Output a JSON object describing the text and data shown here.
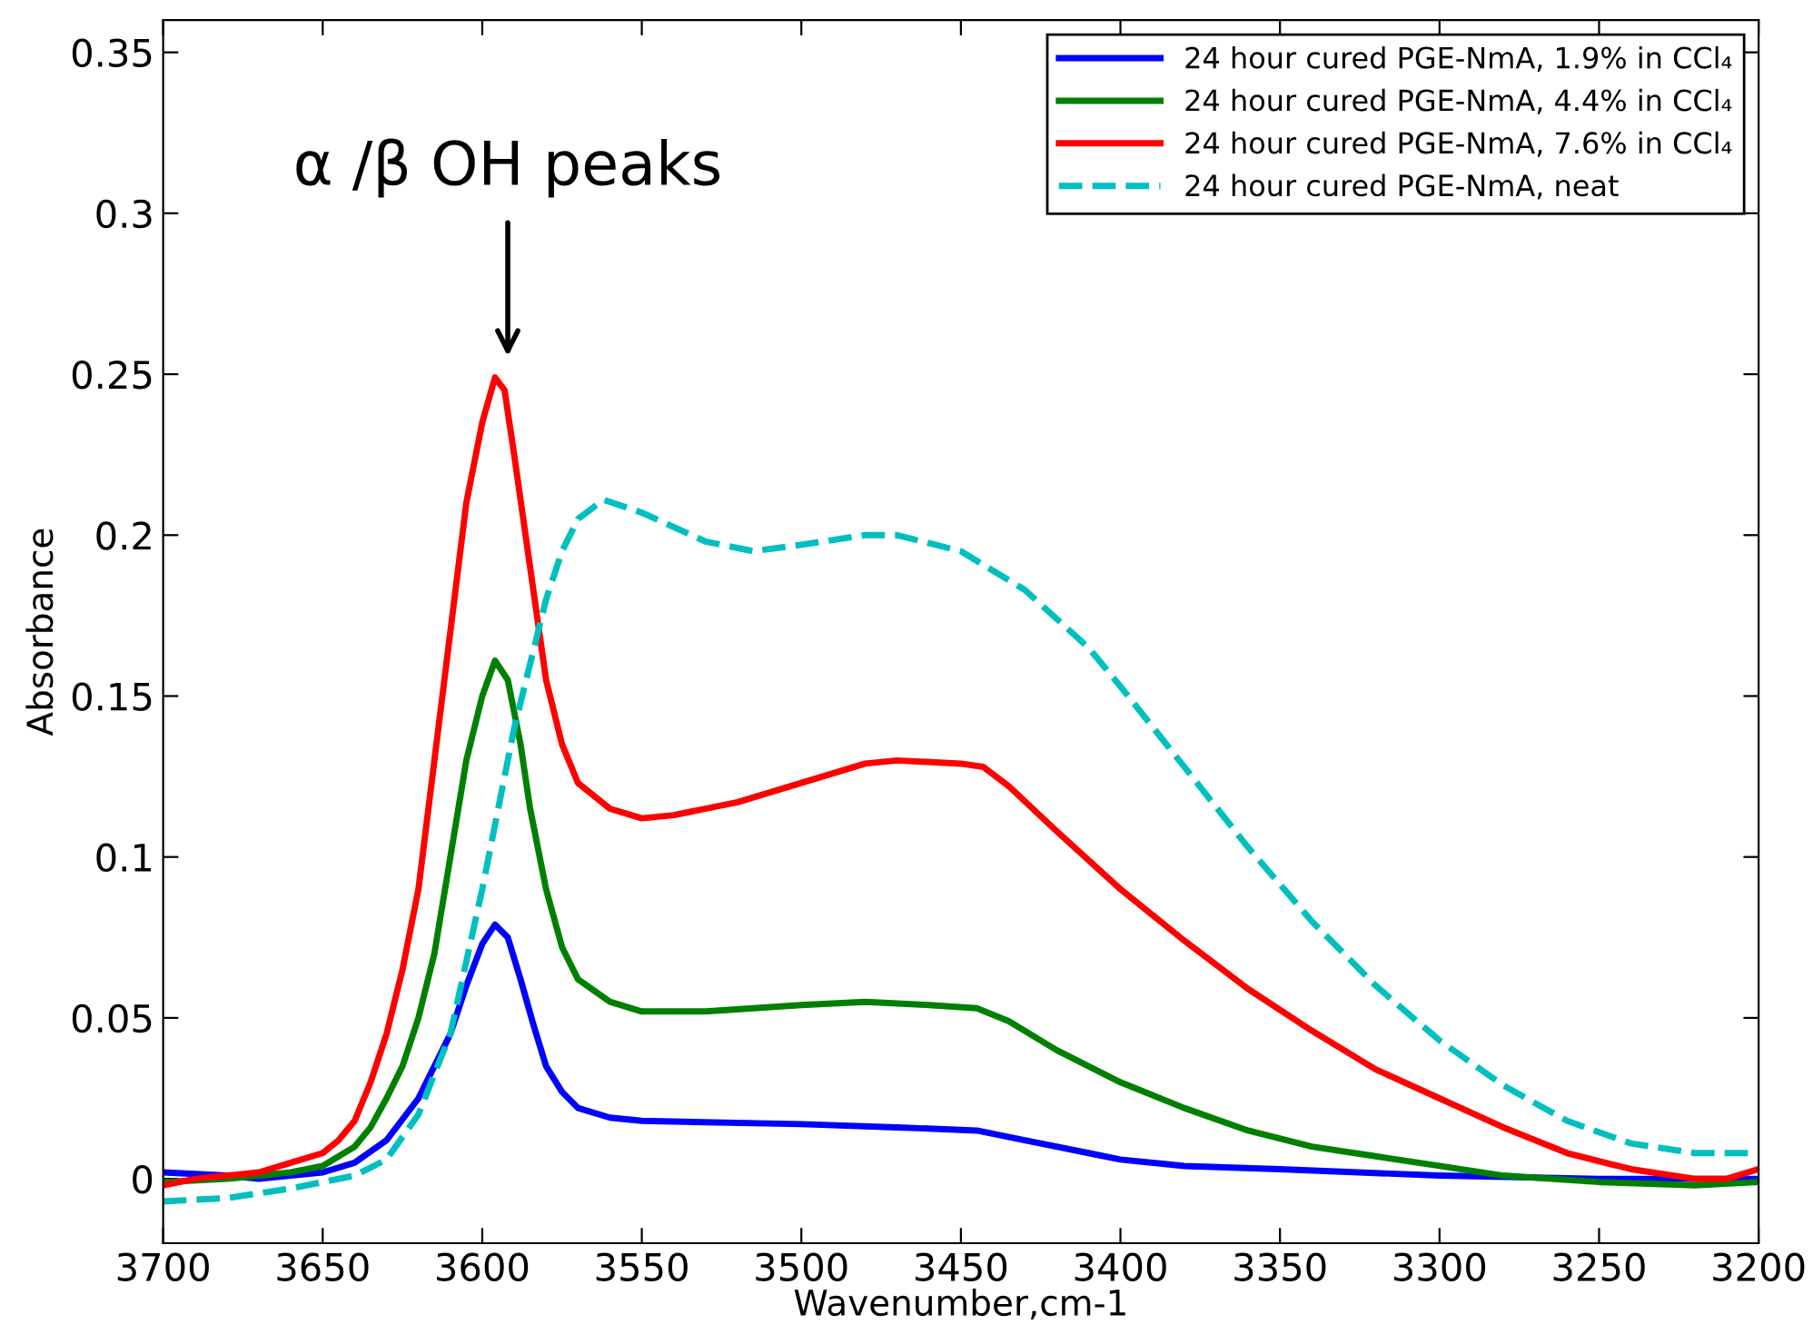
{
  "chart_data": {
    "type": "line",
    "xlabel": "Wavenumber,cm-1",
    "ylabel": "Absorbance",
    "xlim": [
      3700,
      3200
    ],
    "xticks": [
      3700,
      3650,
      3600,
      3550,
      3500,
      3450,
      3400,
      3350,
      3300,
      3250,
      3200
    ],
    "ylim": [
      -0.02,
      0.36
    ],
    "yticks": [
      0,
      0.05,
      0.1,
      0.15,
      0.2,
      0.25,
      0.3,
      0.35
    ],
    "grid": false,
    "legend": "top right",
    "marker": "none",
    "annotations": [
      "α /β OH peaks"
    ],
    "series": [
      {
        "name": "24 hour cured PGE-NmA, 1.9% in CCl₄",
        "color": "#0000ff",
        "line_style": "solid",
        "x": [
          3700,
          3680,
          3670,
          3660,
          3650,
          3640,
          3630,
          3620,
          3610,
          3605,
          3600,
          3596,
          3592,
          3588,
          3584,
          3580,
          3575,
          3570,
          3560,
          3550,
          3500,
          3470,
          3445,
          3430,
          3410,
          3400,
          3380,
          3350,
          3300,
          3250,
          3200
        ],
        "values": [
          0.002,
          0.001,
          0.0,
          0.001,
          0.002,
          0.005,
          0.012,
          0.025,
          0.045,
          0.06,
          0.073,
          0.079,
          0.075,
          0.062,
          0.048,
          0.035,
          0.027,
          0.022,
          0.019,
          0.018,
          0.017,
          0.016,
          0.015,
          0.012,
          0.008,
          0.006,
          0.004,
          0.003,
          0.001,
          0.0,
          0.0
        ]
      },
      {
        "name": "24 hour cured PGE-NmA, 4.4% in CCl₄",
        "color": "#008000",
        "line_style": "solid",
        "x": [
          3700,
          3680,
          3660,
          3650,
          3640,
          3635,
          3630,
          3625,
          3620,
          3615,
          3610,
          3605,
          3600,
          3596,
          3592,
          3588,
          3585,
          3580,
          3575,
          3570,
          3560,
          3550,
          3530,
          3500,
          3480,
          3460,
          3445,
          3435,
          3420,
          3400,
          3380,
          3360,
          3340,
          3320,
          3300,
          3280,
          3250,
          3220,
          3200
        ],
        "values": [
          -0.001,
          0.0,
          0.002,
          0.004,
          0.01,
          0.016,
          0.025,
          0.035,
          0.05,
          0.07,
          0.1,
          0.13,
          0.15,
          0.161,
          0.155,
          0.135,
          0.115,
          0.09,
          0.072,
          0.062,
          0.055,
          0.052,
          0.052,
          0.054,
          0.055,
          0.054,
          0.053,
          0.049,
          0.04,
          0.03,
          0.022,
          0.015,
          0.01,
          0.007,
          0.004,
          0.001,
          -0.001,
          -0.002,
          -0.001
        ]
      },
      {
        "name": "24 hour cured PGE-NmA, 7.6% in CCl₄",
        "color": "#ff0000",
        "line_style": "solid",
        "x": [
          3700,
          3690,
          3680,
          3670,
          3660,
          3650,
          3645,
          3640,
          3635,
          3630,
          3625,
          3620,
          3615,
          3610,
          3605,
          3600,
          3596,
          3593,
          3590,
          3585,
          3580,
          3575,
          3570,
          3560,
          3550,
          3540,
          3520,
          3500,
          3480,
          3470,
          3450,
          3443,
          3435,
          3420,
          3400,
          3380,
          3360,
          3340,
          3320,
          3300,
          3280,
          3260,
          3240,
          3220,
          3210,
          3200
        ],
        "values": [
          -0.002,
          0.0,
          0.001,
          0.002,
          0.005,
          0.008,
          0.012,
          0.018,
          0.03,
          0.045,
          0.065,
          0.09,
          0.13,
          0.17,
          0.21,
          0.235,
          0.249,
          0.245,
          0.225,
          0.19,
          0.155,
          0.135,
          0.123,
          0.115,
          0.112,
          0.113,
          0.117,
          0.123,
          0.129,
          0.13,
          0.129,
          0.128,
          0.122,
          0.108,
          0.09,
          0.074,
          0.059,
          0.046,
          0.034,
          0.025,
          0.016,
          0.008,
          0.003,
          0.0,
          0.0,
          0.003
        ]
      },
      {
        "name": "24 hour cured PGE-NmA, neat",
        "color": "#00bfbf",
        "line_style": "dashed",
        "x": [
          3700,
          3680,
          3660,
          3650,
          3640,
          3630,
          3620,
          3610,
          3600,
          3590,
          3585,
          3580,
          3575,
          3570,
          3562,
          3550,
          3530,
          3515,
          3500,
          3480,
          3470,
          3450,
          3430,
          3410,
          3400,
          3380,
          3360,
          3340,
          3320,
          3300,
          3280,
          3260,
          3240,
          3220,
          3200
        ],
        "values": [
          -0.007,
          -0.006,
          -0.003,
          -0.001,
          0.001,
          0.006,
          0.02,
          0.045,
          0.09,
          0.14,
          0.16,
          0.18,
          0.195,
          0.205,
          0.211,
          0.207,
          0.198,
          0.195,
          0.197,
          0.2,
          0.2,
          0.195,
          0.183,
          0.165,
          0.153,
          0.128,
          0.103,
          0.08,
          0.06,
          0.043,
          0.029,
          0.018,
          0.011,
          0.008,
          0.008
        ]
      }
    ]
  }
}
